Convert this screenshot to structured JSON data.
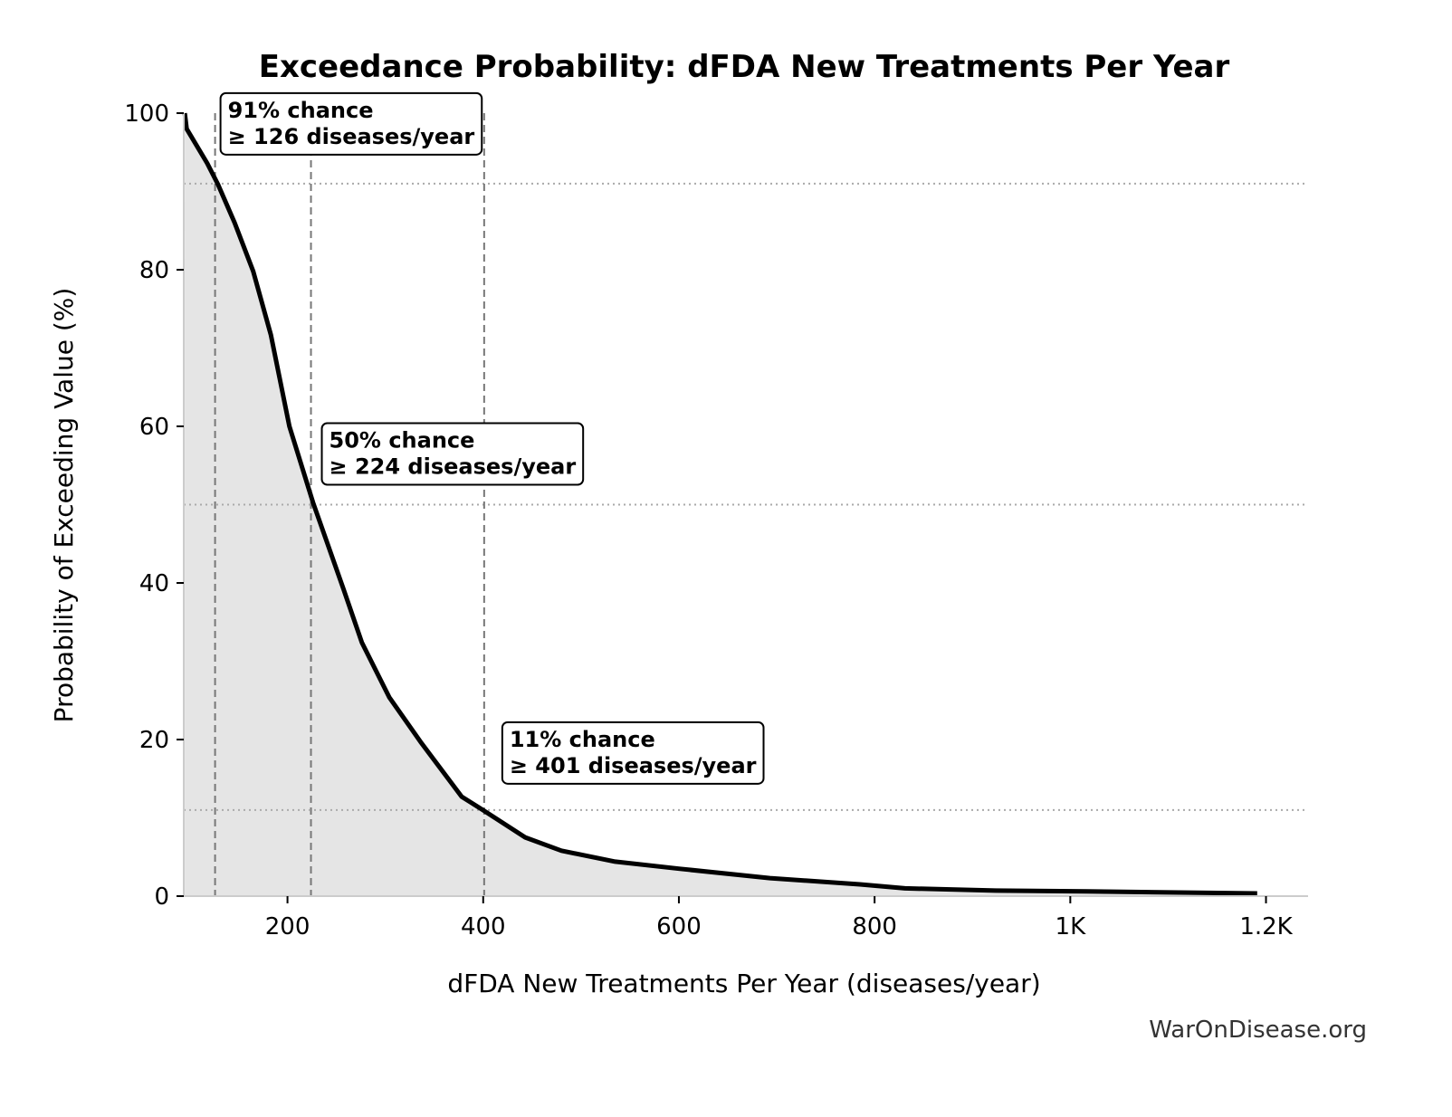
{
  "chart_data": {
    "type": "area",
    "title": "Exceedance Probability: dFDA New Treatments Per Year",
    "xlabel": "dFDA New Treatments Per Year (diseases/year)",
    "ylabel": "Probability of Exceeding Value (%)",
    "xlim": [
      94,
      1243
    ],
    "ylim": [
      0,
      100
    ],
    "x_ticks": [
      200,
      400,
      600,
      800,
      1000,
      1200
    ],
    "x_tick_labels": [
      "200",
      "400",
      "600",
      "800",
      "1K",
      "1.2K"
    ],
    "y_ticks": [
      0,
      20,
      40,
      60,
      80,
      100
    ],
    "y_tick_labels": [
      "0",
      "20",
      "40",
      "60",
      "80",
      "100"
    ],
    "grid": false,
    "line_color": "#000000",
    "fill_color": "#e5e5e5",
    "series": [
      {
        "x": [
          95,
          97,
          118,
          129,
          146,
          165,
          183,
          202,
          226,
          257,
          276,
          304,
          336,
          378,
          401,
          443,
          480,
          535,
          600,
          693,
          785,
          831,
          924,
          1017,
          1191
        ],
        "y": [
          100,
          98,
          93.6,
          90.9,
          86,
          79.8,
          71.7,
          60,
          50.3,
          39.3,
          32.4,
          25.4,
          19.7,
          12.7,
          10.9,
          7.5,
          5.8,
          4.4,
          3.5,
          2.3,
          1.5,
          1.0,
          0.7,
          0.6,
          0.35
        ]
      }
    ],
    "annotations": [
      {
        "x": 126,
        "prob": 91,
        "line1": "91% chance",
        "line2": "≥ 126 diseases/year"
      },
      {
        "x": 224,
        "prob": 50,
        "line1": "50% chance",
        "line2": "≥ 224 diseases/year"
      },
      {
        "x": 401,
        "prob": 11,
        "line1": "11% chance",
        "line2": "≥ 401 diseases/year"
      }
    ]
  },
  "watermark": "WarOnDisease.org"
}
